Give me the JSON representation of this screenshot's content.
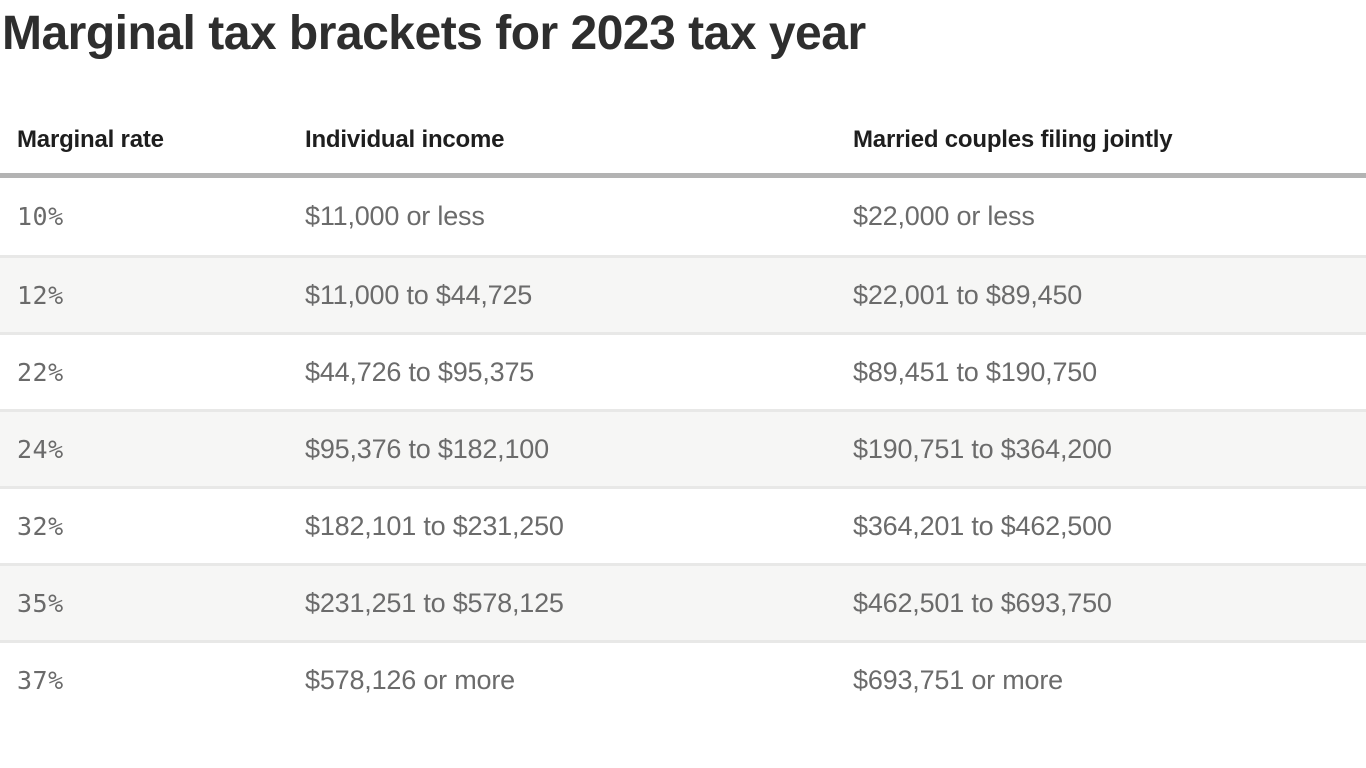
{
  "chart_data": {
    "type": "table",
    "title": "Marginal tax brackets for 2023 tax year",
    "columns": [
      "Marginal rate",
      "Individual income",
      "Married couples filing jointly"
    ],
    "rows": [
      [
        "10%",
        "$11,000 or less",
        "$22,000 or less"
      ],
      [
        "12%",
        "$11,000 to $44,725",
        "$22,001 to $89,450"
      ],
      [
        "22%",
        "$44,726 to $95,375",
        "$89,451 to $190,750"
      ],
      [
        "24%",
        "$95,376 to $182,100",
        "$190,751 to $364,200"
      ],
      [
        "32%",
        "$182,101 to $231,250",
        "$364,201 to $462,500"
      ],
      [
        "35%",
        "$231,251 to $578,125",
        "$462,501 to $693,750"
      ],
      [
        "37%",
        "$578,126 or more",
        "$693,751 or more"
      ]
    ],
    "layout": {
      "zebra_striping": true,
      "header_rule": true
    }
  },
  "colors": {
    "title_text": "#2e2e2e",
    "header_text": "#1e1e1e",
    "body_text": "#6b6b6b",
    "thick_rule": "#b3b3b3",
    "row_divider": "#e8e8e7",
    "row_alt_bg": "#f6f6f5",
    "background": "#ffffff"
  }
}
